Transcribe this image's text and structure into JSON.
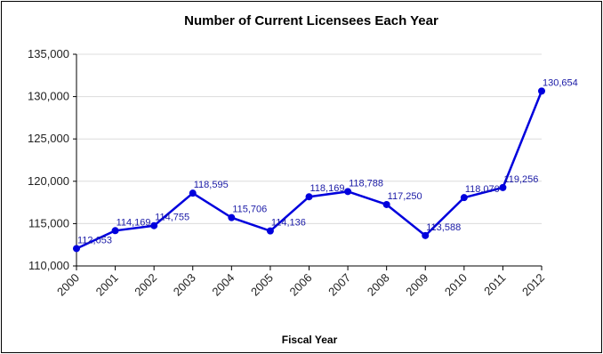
{
  "chart_data": {
    "type": "line",
    "title": "Number of Current Licensees Each Year",
    "xlabel": "Fiscal Year",
    "ylabel": "",
    "categories": [
      "2000",
      "2001",
      "2002",
      "2003",
      "2004",
      "2005",
      "2006",
      "2007",
      "2008",
      "2009",
      "2010",
      "2011",
      "2012"
    ],
    "series": [
      {
        "values": [
          112053,
          114169,
          114755,
          118595,
          115706,
          114136,
          118169,
          118788,
          117250,
          113588,
          118070,
          119256,
          130654
        ],
        "labels": [
          "112,053",
          "114,169",
          "114,755",
          "118,595",
          "115,706",
          "114,136",
          "118,169",
          "118,788",
          "117,250",
          "113,588",
          "118,070",
          "119,256",
          "130,654"
        ]
      }
    ],
    "ylim": [
      110000,
      135000
    ],
    "yticks": [
      110000,
      115000,
      120000,
      125000,
      130000,
      135000
    ],
    "ytick_labels": [
      "110,000",
      "115,000",
      "120,000",
      "125,000",
      "130,000",
      "135,000"
    ],
    "grid": true,
    "legend": "none",
    "colors": {
      "line": "#0000dd",
      "label": "#1a1aa6",
      "grid": "#dcdcdc"
    }
  }
}
